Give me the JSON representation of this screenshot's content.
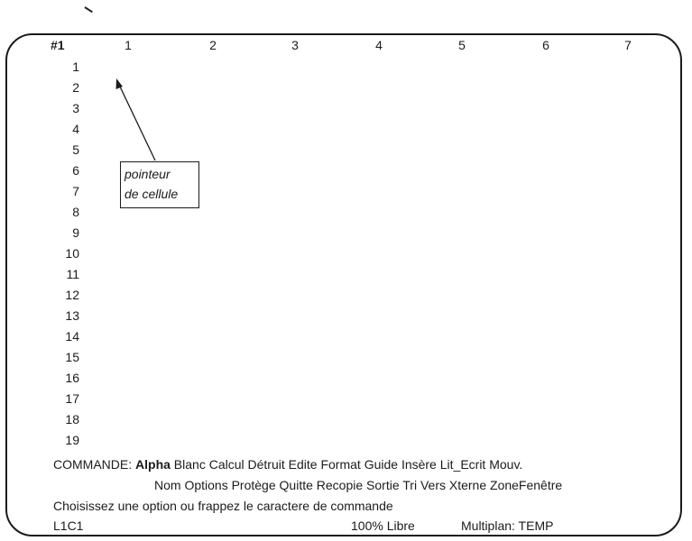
{
  "sheet": {
    "cell_reference": "#1",
    "column_headers": [
      "1",
      "2",
      "3",
      "4",
      "5",
      "6",
      "7"
    ],
    "row_headers": [
      "1",
      "2",
      "3",
      "4",
      "5",
      "6",
      "7",
      "8",
      "9",
      "10",
      "11",
      "12",
      "13",
      "14",
      "15",
      "16",
      "17",
      "18",
      "19"
    ]
  },
  "callout": {
    "line1": "pointeur",
    "line2": "de cellule"
  },
  "command_menu": {
    "label": "COMMANDE:",
    "row1": [
      "Alpha",
      "Blanc",
      "Calcul",
      "Détruit",
      "Edite",
      "Format",
      "Guide",
      "Insère",
      "Lit_Ecrit",
      "Mouv."
    ],
    "row2": [
      "Nom",
      "Options",
      "Protège",
      "Quitte",
      "Recopie",
      "Sortie",
      "Tri",
      "Vers",
      "Xterne",
      "ZoneFenêtre"
    ],
    "selected": "Alpha"
  },
  "message_line": "Choisissez une option ou frappez le caractere de commande",
  "status": {
    "cell_position": "L1C1",
    "memory_free": "100% Libre",
    "program_file": "Multiplan: TEMP"
  }
}
